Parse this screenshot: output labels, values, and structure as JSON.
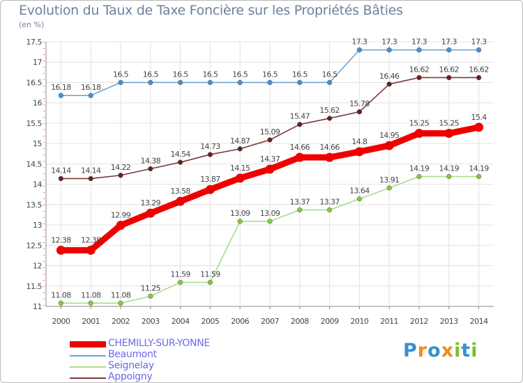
{
  "chart_data": {
    "type": "line",
    "title": "Evolution du Taux de Taxe Foncière sur les Propriétés Bâties",
    "subtitle": "(en %)",
    "categories": [
      "2000",
      "2001",
      "2002",
      "2003",
      "2004",
      "2005",
      "2006",
      "2007",
      "2008",
      "2009",
      "2010",
      "2011",
      "2012",
      "2013",
      "2014"
    ],
    "ylim": [
      11,
      17.5
    ],
    "yticks": [
      "11",
      "11.5",
      "12",
      "12.5",
      "13",
      "13.5",
      "14",
      "14.5",
      "15",
      "15.5",
      "16",
      "16.5",
      "17",
      "17.5"
    ],
    "grid": true,
    "series": [
      {
        "name": "Beaumont",
        "color": "#6fa5d8",
        "marker": "#4a90d0",
        "values": [
          16.18,
          16.18,
          16.5,
          16.5,
          16.5,
          16.5,
          16.5,
          16.5,
          16.5,
          16.5,
          17.3,
          17.3,
          17.3,
          17.3,
          17.3
        ],
        "labels": [
          "16.18",
          "16.18",
          "16.5",
          "16.5",
          "16.5",
          "16.5",
          "16.5",
          "16.5",
          "16.5",
          "16.5",
          "17.3",
          "17.3",
          "17.3",
          "17.3",
          "17.3"
        ]
      },
      {
        "name": "Appoigny",
        "color": "#7a3a3a",
        "marker": "#6b1f1f",
        "values": [
          14.14,
          14.14,
          14.22,
          14.38,
          14.54,
          14.73,
          14.87,
          15.09,
          15.47,
          15.62,
          15.78,
          16.46,
          16.62,
          16.62,
          16.62
        ],
        "labels": [
          "14.14",
          "14.14",
          "14.22",
          "14.38",
          "14.54",
          "14.73",
          "14.87",
          "15.09",
          "15.47",
          "15.62",
          "15.78",
          "16.46",
          "16.62",
          "16.62",
          "16.62"
        ]
      },
      {
        "name": "Seignelay",
        "color": "#a8dc88",
        "marker": "#80cc40",
        "values": [
          11.08,
          11.08,
          11.08,
          11.25,
          11.59,
          11.59,
          13.09,
          13.09,
          13.37,
          13.37,
          13.64,
          13.91,
          14.19,
          14.19,
          14.19
        ],
        "labels": [
          "11.08",
          "11.08",
          "11.08",
          "11.25",
          "11.59",
          "11.59",
          "13.09",
          "13.09",
          "13.37",
          "13.37",
          "13.64",
          "13.91",
          "14.19",
          "14.19",
          "14.19"
        ]
      },
      {
        "name": "CHEMILLY-SUR-YONNE",
        "color": "#ee0000",
        "marker": "#ee0000",
        "values": [
          12.38,
          12.38,
          12.99,
          13.29,
          13.58,
          13.87,
          14.15,
          14.37,
          14.66,
          14.66,
          14.8,
          14.95,
          15.25,
          15.25,
          15.4
        ],
        "labels": [
          "12.38",
          "12.38",
          "12.99",
          "13.29",
          "13.58",
          "13.87",
          "14.15",
          "14.37",
          "14.66",
          "14.66",
          "14.8",
          "14.95",
          "15.25",
          "15.25",
          "15.4"
        ]
      }
    ],
    "legend": [
      {
        "name": "CHEMILLY-SUR-YONNE",
        "color": "#ee0000"
      },
      {
        "name": "Beaumont",
        "color": "#6fa5d8"
      },
      {
        "name": "Seignelay",
        "color": "#a8dc88"
      },
      {
        "name": "Appoigny",
        "color": "#7a3a3a"
      }
    ],
    "legend_placement": "bottom-left"
  },
  "logo": {
    "letters": [
      "P",
      "r",
      "o",
      "x",
      "i",
      "t",
      "i"
    ],
    "colors": [
      "#3a8fd0",
      "#f08a1c",
      "#3a8fd0",
      "#f08a1c",
      "#78c030",
      "#3a8fd0",
      "#78c030"
    ]
  }
}
